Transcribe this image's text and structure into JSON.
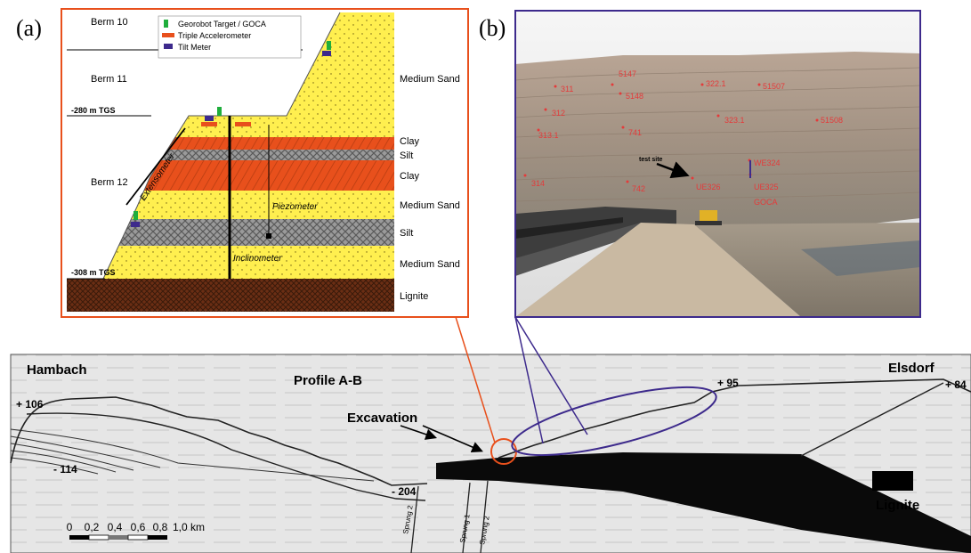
{
  "panel_a": {
    "tag": "(a)",
    "berms": [
      "Berm 10",
      "Berm 11",
      "Berm 12"
    ],
    "depth_top": "-280 m TGS",
    "depth_bottom": "-308 m TGS",
    "legend": [
      "Georobot Target / GOCA",
      "Triple Accelerometer",
      "Tilt Meter"
    ],
    "instruments": {
      "extensometer": "Extensometer",
      "piezometer": "Piezometer",
      "inclinometer": "Inclinometer"
    },
    "layers": [
      "Medium Sand",
      "Clay",
      "Silt",
      "Clay",
      "Medium Sand",
      "Silt",
      "Medium Sand",
      "Lignite"
    ],
    "colors": {
      "sand": "#ffef4f",
      "clay": "#e8501c",
      "silt": "#9a9a9a",
      "lignite": "#6b2e14",
      "frame": "#e8501c"
    }
  },
  "panel_b": {
    "tag": "(b)",
    "points": [
      "5147",
      "311",
      "5148",
      "322.1",
      "51507",
      "312",
      "323.1",
      "51508",
      "313.1",
      "741",
      "WE324",
      "314",
      "742",
      "UE326",
      "UE325",
      "GOCA"
    ],
    "test_site": "test site",
    "colors": {
      "frame": "#3d2a8c",
      "label": "#e43a3a"
    }
  },
  "profile": {
    "west": "Hambach",
    "east": "Elsdorf",
    "title": "Profile A-B",
    "excavation": "Excavation",
    "elevations": [
      "+ 106",
      "- 114",
      "- 204",
      "+ 95",
      "+ 84"
    ],
    "scale_ticks": [
      "0",
      "0,2",
      "0,4",
      "0,6",
      "0,8",
      "1,0 km"
    ],
    "legend": "Lignite",
    "faults": [
      "Sprung 2",
      "Sprung 1",
      "Sprung 2"
    ]
  }
}
